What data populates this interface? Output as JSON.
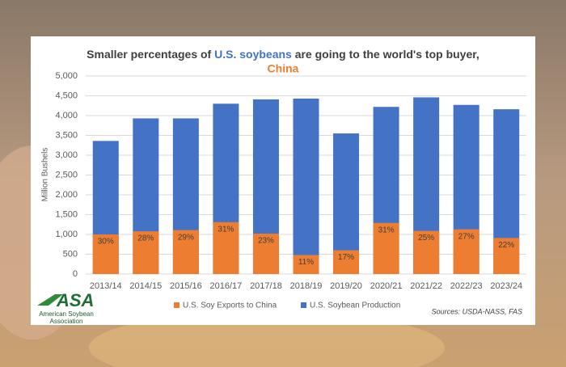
{
  "chart_data": {
    "type": "overlap-bar",
    "title_parts": [
      {
        "text": "Smaller percentages of ",
        "color": "#404040"
      },
      {
        "text": "U.S. soybeans",
        "color": "#4472c4"
      },
      {
        "text": " are going to the world's top buyer,",
        "color": "#404040"
      },
      {
        "text": "China",
        "color": "#ed7d31"
      }
    ],
    "y_label": "Million Bushels",
    "categories": [
      "2013/14",
      "2014/15",
      "2015/16",
      "2016/17",
      "2017/18",
      "2018/19",
      "2019/20",
      "2020/21",
      "2021/22",
      "2022/23",
      "2023/24"
    ],
    "series": [
      {
        "name": "U.S. Soy Exports to China",
        "color": "#ed7d31",
        "values": [
          1000,
          1080,
          1110,
          1310,
          1020,
          480,
          600,
          1290,
          1090,
          1130,
          910
        ],
        "percent_labels": [
          "30%",
          "28%",
          "29%",
          "31%",
          "23%",
          "11%",
          "17%",
          "31%",
          "25%",
          "27%",
          "22%"
        ]
      },
      {
        "name": "U.S. Soybean Production",
        "color": "#4472c4",
        "values": [
          3360,
          3930,
          3930,
          4300,
          4410,
          4430,
          3550,
          4220,
          4460,
          4270,
          4160
        ]
      }
    ],
    "ylim": [
      0,
      5000
    ],
    "yticks": [
      0,
      500,
      {
        "value": 1000,
        "label": "1,000"
      },
      {
        "value": 1500,
        "label": "1,500"
      },
      {
        "value": 2000,
        "label": "2,000"
      },
      {
        "value": 2500,
        "label": "2,500"
      },
      {
        "value": 3000,
        "label": "3,000"
      },
      {
        "value": 3500,
        "label": "3,500"
      },
      {
        "value": 4000,
        "label": "4,000"
      },
      {
        "value": 4500,
        "label": "4,500"
      },
      {
        "value": 5000,
        "label": "5,000"
      }
    ],
    "source": "Sources: USDA-NASS, FAS",
    "logo": {
      "mark": "ASA",
      "line1": "American Soybean",
      "line2": "Association"
    }
  }
}
